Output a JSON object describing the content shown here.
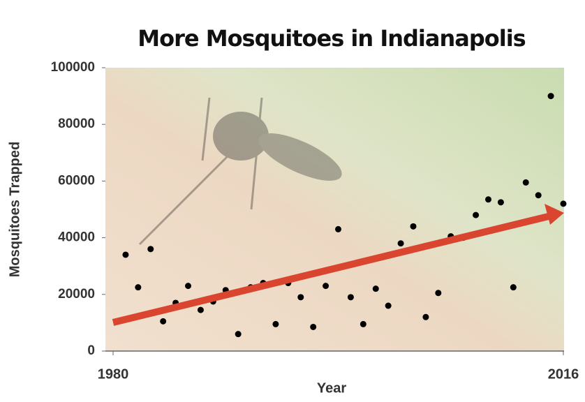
{
  "chart_data": {
    "type": "scatter",
    "title": "More Mosquitoes in Indianapolis",
    "x_label": "Year",
    "y_label": "Mosquitoes Trapped",
    "x": [
      1981,
      1982,
      1983,
      1984,
      1985,
      1986,
      1987,
      1988,
      1989,
      1990,
      1991,
      1992,
      1993,
      1994,
      1995,
      1996,
      1997,
      1998,
      1999,
      2000,
      2001,
      2002,
      2003,
      2004,
      2005,
      2006,
      2007,
      2008,
      2009,
      2010,
      2011,
      2012,
      2013,
      2014,
      2015,
      2016
    ],
    "values": [
      34000,
      22500,
      36000,
      10500,
      17000,
      23000,
      14500,
      17500,
      21500,
      6000,
      22500,
      24000,
      9500,
      24000,
      19000,
      8500,
      23000,
      43000,
      19000,
      9500,
      22000,
      16000,
      38000,
      44000,
      12000,
      20500,
      40500,
      40000,
      48000,
      53500,
      52500,
      22500,
      59500,
      55000,
      90000,
      52000
    ],
    "color": "#000000",
    "xlim": [
      1980,
      2016
    ],
    "xticks": [
      1980,
      2016
    ],
    "ylim": [
      0,
      100000
    ],
    "yticks": [
      0,
      20000,
      40000,
      60000,
      80000,
      100000
    ]
  }
}
